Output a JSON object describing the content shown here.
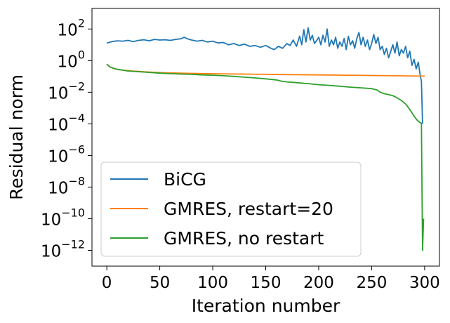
{
  "chart_data": {
    "type": "line",
    "xlabel": "Iteration number",
    "ylabel": "Residual norm",
    "yscale": "log",
    "xlim": [
      -14,
      314
    ],
    "ylim": [
      1e-13,
      2000
    ],
    "x_ticks": [
      0,
      50,
      100,
      150,
      200,
      250,
      300
    ],
    "y_ticks": [
      {
        "base": "10",
        "exp": "2",
        "value": 100
      },
      {
        "base": "10",
        "exp": "0",
        "value": 1
      },
      {
        "base": "10",
        "exp": "−2",
        "value": 0.01
      },
      {
        "base": "10",
        "exp": "−4",
        "value": 0.0001
      },
      {
        "base": "10",
        "exp": "−6",
        "value": 1e-06
      },
      {
        "base": "10",
        "exp": "−8",
        "value": 1e-08
      },
      {
        "base": "10",
        "exp": "−10",
        "value": 1e-10
      },
      {
        "base": "10",
        "exp": "−12",
        "value": 1e-12
      }
    ],
    "grid": false,
    "legend_position": "lower-left",
    "series": [
      {
        "name": "BiCG",
        "color": "#1f77b4",
        "points": [
          [
            0,
            13
          ],
          [
            5,
            16
          ],
          [
            10,
            18
          ],
          [
            15,
            17
          ],
          [
            20,
            19
          ],
          [
            25,
            16
          ],
          [
            30,
            19
          ],
          [
            35,
            21
          ],
          [
            40,
            18
          ],
          [
            45,
            22
          ],
          [
            50,
            20
          ],
          [
            55,
            21
          ],
          [
            60,
            19
          ],
          [
            65,
            22
          ],
          [
            70,
            24
          ],
          [
            73,
            30
          ],
          [
            76,
            24
          ],
          [
            80,
            20
          ],
          [
            85,
            17
          ],
          [
            90,
            19
          ],
          [
            95,
            15
          ],
          [
            100,
            17
          ],
          [
            105,
            13
          ],
          [
            110,
            14
          ],
          [
            115,
            10
          ],
          [
            120,
            12
          ],
          [
            125,
            9
          ],
          [
            130,
            11
          ],
          [
            135,
            8
          ],
          [
            140,
            9
          ],
          [
            145,
            7
          ],
          [
            150,
            9
          ],
          [
            155,
            6
          ],
          [
            158,
            5
          ],
          [
            162,
            8
          ],
          [
            166,
            6
          ],
          [
            170,
            12
          ],
          [
            173,
            9
          ],
          [
            176,
            20
          ],
          [
            179,
            8
          ],
          [
            182,
            35
          ],
          [
            184,
            10
          ],
          [
            186,
            90
          ],
          [
            188,
            15
          ],
          [
            190,
            120
          ],
          [
            192,
            20
          ],
          [
            194,
            40
          ],
          [
            196,
            12
          ],
          [
            198,
            18
          ],
          [
            200,
            30
          ],
          [
            202,
            10
          ],
          [
            204,
            40
          ],
          [
            206,
            15
          ],
          [
            208,
            100
          ],
          [
            210,
            8
          ],
          [
            212,
            20
          ],
          [
            214,
            10
          ],
          [
            216,
            30
          ],
          [
            218,
            6
          ],
          [
            220,
            15
          ],
          [
            222,
            8
          ],
          [
            224,
            25
          ],
          [
            226,
            5
          ],
          [
            228,
            35
          ],
          [
            230,
            10
          ],
          [
            232,
            18
          ],
          [
            234,
            6
          ],
          [
            236,
            25
          ],
          [
            238,
            60
          ],
          [
            240,
            10
          ],
          [
            242,
            30
          ],
          [
            244,
            8
          ],
          [
            246,
            20
          ],
          [
            248,
            5
          ],
          [
            250,
            12
          ],
          [
            252,
            45
          ],
          [
            254,
            12
          ],
          [
            256,
            30
          ],
          [
            258,
            5
          ],
          [
            260,
            8
          ],
          [
            262,
            2.5
          ],
          [
            264,
            6
          ],
          [
            266,
            1.5
          ],
          [
            268,
            4
          ],
          [
            270,
            10
          ],
          [
            272,
            3
          ],
          [
            274,
            15
          ],
          [
            276,
            2
          ],
          [
            278,
            5
          ],
          [
            280,
            3
          ],
          [
            282,
            8
          ],
          [
            284,
            1.5
          ],
          [
            286,
            4
          ],
          [
            288,
            0.5
          ],
          [
            290,
            1.2
          ],
          [
            292,
            0.3
          ],
          [
            294,
            0.8
          ],
          [
            296,
            0.1
          ],
          [
            297,
            0.05
          ],
          [
            298,
            0.0001
          ]
        ]
      },
      {
        "name": "GMRES, restart=20",
        "color": "#ff7f0e",
        "points": [
          [
            0,
            0.6
          ],
          [
            3,
            0.4
          ],
          [
            6,
            0.33
          ],
          [
            10,
            0.28
          ],
          [
            15,
            0.25
          ],
          [
            20,
            0.23
          ],
          [
            30,
            0.21
          ],
          [
            40,
            0.19
          ],
          [
            50,
            0.175
          ],
          [
            60,
            0.165
          ],
          [
            80,
            0.155
          ],
          [
            100,
            0.148
          ],
          [
            150,
            0.135
          ],
          [
            200,
            0.125
          ],
          [
            250,
            0.115
          ],
          [
            300,
            0.105
          ]
        ]
      },
      {
        "name": "GMRES, no restart",
        "color": "#2ca02c",
        "points": [
          [
            0,
            0.6
          ],
          [
            3,
            0.4
          ],
          [
            6,
            0.33
          ],
          [
            10,
            0.28
          ],
          [
            15,
            0.25
          ],
          [
            20,
            0.22
          ],
          [
            30,
            0.2
          ],
          [
            40,
            0.18
          ],
          [
            50,
            0.16
          ],
          [
            60,
            0.15
          ],
          [
            70,
            0.14
          ],
          [
            80,
            0.135
          ],
          [
            90,
            0.125
          ],
          [
            100,
            0.12
          ],
          [
            110,
            0.11
          ],
          [
            120,
            0.1
          ],
          [
            130,
            0.09
          ],
          [
            140,
            0.08
          ],
          [
            150,
            0.07
          ],
          [
            160,
            0.06
          ],
          [
            165,
            0.05
          ],
          [
            170,
            0.045
          ],
          [
            180,
            0.04
          ],
          [
            190,
            0.035
          ],
          [
            200,
            0.03
          ],
          [
            210,
            0.027
          ],
          [
            220,
            0.024
          ],
          [
            230,
            0.021
          ],
          [
            240,
            0.019
          ],
          [
            250,
            0.017
          ],
          [
            255,
            0.014
          ],
          [
            258,
            0.01
          ],
          [
            262,
            0.008
          ],
          [
            266,
            0.007
          ],
          [
            270,
            0.006
          ],
          [
            274,
            0.0045
          ],
          [
            278,
            0.003
          ],
          [
            282,
            0.0018
          ],
          [
            285,
            0.001
          ],
          [
            288,
            0.0005
          ],
          [
            291,
            0.00025
          ],
          [
            293,
            0.00017
          ],
          [
            295,
            0.00013
          ],
          [
            297,
            0.00011
          ],
          [
            298,
            1e-12
          ],
          [
            299,
            1e-10
          ]
        ]
      }
    ]
  }
}
